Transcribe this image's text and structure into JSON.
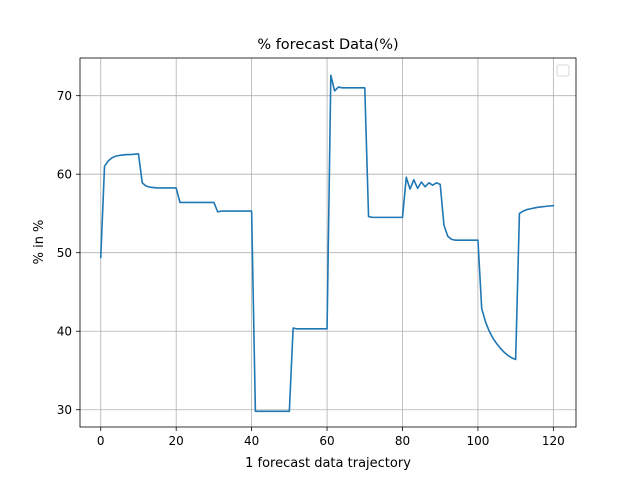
{
  "chart_data": {
    "type": "line",
    "title": "% forecast Data(%)",
    "xlabel": "1 forecast data trajectory",
    "ylabel": "% in %",
    "xlim": [
      -5.5,
      126
    ],
    "ylim": [
      27.8,
      74.8
    ],
    "xticks": [
      0,
      20,
      40,
      60,
      80,
      100,
      120
    ],
    "yticks": [
      30,
      40,
      50,
      60,
      70
    ],
    "grid": true,
    "legend": {
      "position": "top-right",
      "entries": []
    },
    "colors": {
      "line": "#1f77b4",
      "grid": "#b0b0b0"
    },
    "series": [
      {
        "x": [
          0,
          1,
          2,
          3,
          4,
          5,
          6,
          7,
          8,
          10,
          11,
          12,
          13,
          14,
          15,
          16,
          17,
          18,
          19,
          20,
          21,
          22,
          23,
          24,
          25,
          26,
          27,
          28,
          29,
          30,
          31,
          32,
          33,
          34,
          35,
          36,
          37,
          38,
          39,
          40,
          41,
          42,
          43,
          44,
          45,
          46,
          47,
          48,
          49,
          50,
          51,
          52,
          53,
          54,
          55,
          56,
          57,
          58,
          59,
          60,
          61,
          62,
          63,
          64,
          65,
          66,
          67,
          68,
          69,
          70,
          71,
          72,
          73,
          74,
          75,
          76,
          77,
          78,
          79,
          80,
          81,
          82,
          83,
          84,
          85,
          86,
          87,
          88,
          89,
          90,
          91,
          92,
          93,
          94,
          95,
          96,
          97,
          98,
          99,
          100,
          101,
          102,
          103,
          104,
          105,
          106,
          107,
          108,
          109,
          110,
          111,
          112,
          113,
          114,
          115,
          116,
          117,
          118,
          119,
          120
        ],
        "y": [
          49.4,
          61.0,
          61.7,
          62.1,
          62.3,
          62.4,
          62.45,
          62.5,
          62.5,
          62.6,
          58.9,
          58.5,
          58.35,
          58.3,
          58.25,
          58.25,
          58.25,
          58.25,
          58.25,
          58.25,
          56.4,
          56.4,
          56.4,
          56.4,
          56.4,
          56.4,
          56.4,
          56.4,
          56.4,
          56.4,
          55.2,
          55.3,
          55.3,
          55.3,
          55.3,
          55.3,
          55.3,
          55.3,
          55.3,
          55.3,
          29.8,
          29.8,
          29.8,
          29.8,
          29.8,
          29.8,
          29.8,
          29.8,
          29.8,
          29.8,
          40.4,
          40.3,
          40.3,
          40.3,
          40.3,
          40.3,
          40.3,
          40.3,
          40.3,
          40.3,
          72.6,
          70.6,
          71.1,
          71.0,
          71.0,
          71.0,
          71.0,
          71.0,
          71.0,
          71.0,
          54.6,
          54.5,
          54.5,
          54.5,
          54.5,
          54.5,
          54.5,
          54.5,
          54.5,
          54.5,
          59.6,
          58.1,
          59.3,
          58.2,
          59.0,
          58.4,
          58.9,
          58.6,
          58.9,
          58.7,
          53.5,
          52.1,
          51.7,
          51.6,
          51.6,
          51.6,
          51.6,
          51.6,
          51.6,
          51.6,
          42.9,
          41.2,
          40.0,
          39.1,
          38.4,
          37.8,
          37.3,
          36.9,
          36.6,
          36.4,
          55.0,
          55.3,
          55.5,
          55.6,
          55.7,
          55.8,
          55.85,
          55.9,
          55.95,
          56.0
        ]
      }
    ]
  }
}
